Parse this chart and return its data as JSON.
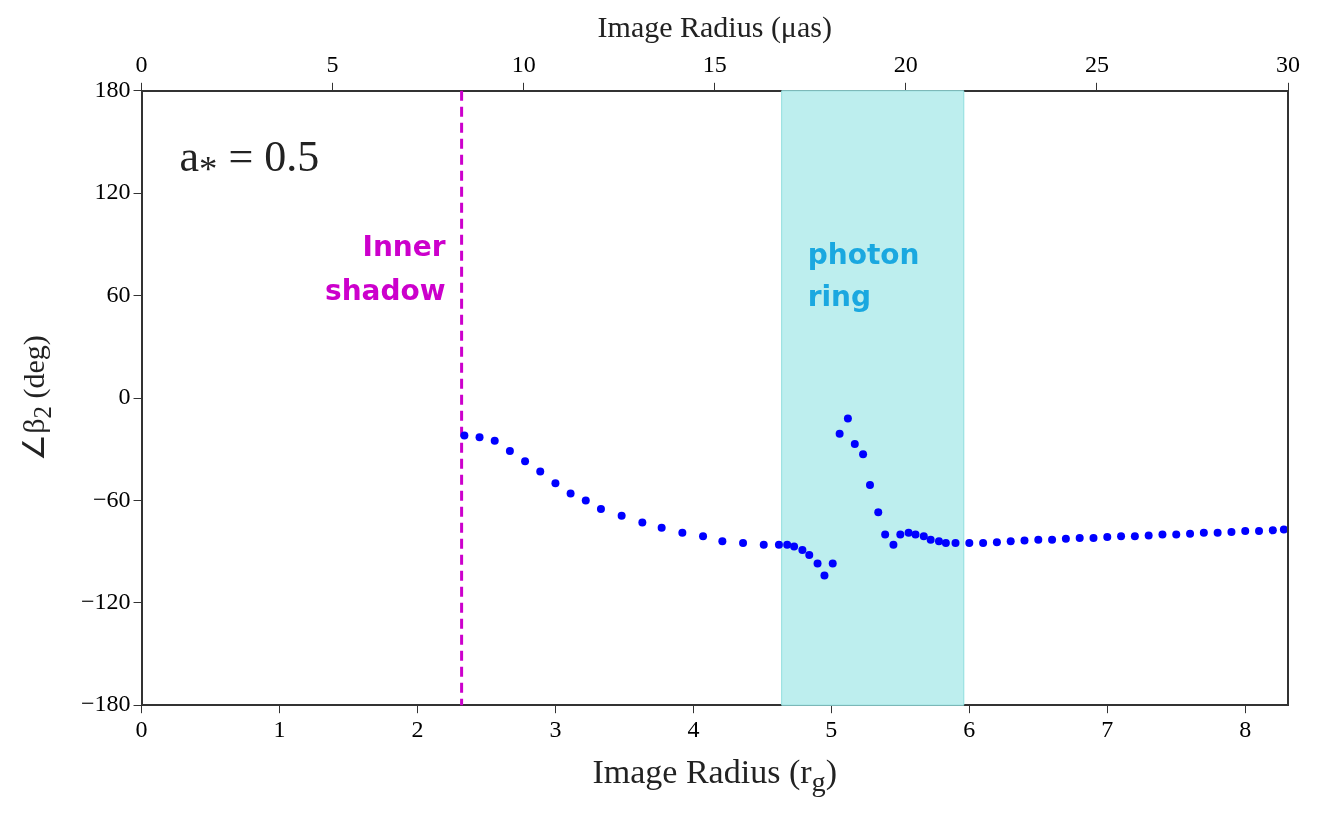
{
  "chart_data": {
    "type": "scatter",
    "xlabel": "Image Radius (r$_{g}$)",
    "x2label": "Image Radius (μas)",
    "ylabel": "∠β$_{2}$ (deg)",
    "xlim": [
      0,
      8.31
    ],
    "xticks": [
      0,
      1,
      2,
      3,
      4,
      5,
      6,
      7,
      8
    ],
    "x2lim": [
      0,
      30
    ],
    "x2ticks": [
      0,
      5,
      10,
      15,
      20,
      25,
      30
    ],
    "ylim": [
      -180,
      180
    ],
    "yticks": [
      {
        "value": -180,
        "label": "−180"
      },
      {
        "value": -120,
        "label": "−120"
      },
      {
        "value": -60,
        "label": "−60"
      },
      0,
      60,
      120,
      180
    ],
    "grid": false,
    "legend": false,
    "marker": "circle",
    "series": [
      {
        "color": "#0000ff",
        "x": [
          2.34,
          2.45,
          2.56,
          2.67,
          2.78,
          2.89,
          3.0,
          3.11,
          3.22,
          3.33,
          3.48,
          3.63,
          3.77,
          3.92,
          4.07,
          4.21,
          4.36,
          4.51,
          4.62,
          4.68,
          4.73,
          4.79,
          4.84,
          4.9,
          4.95,
          5.01,
          5.06,
          5.12,
          5.17,
          5.23,
          5.28,
          5.34,
          5.39,
          5.45,
          5.5,
          5.56,
          5.61,
          5.67,
          5.72,
          5.78,
          5.83,
          5.9,
          6.0,
          6.1,
          6.2,
          6.3,
          6.4,
          6.5,
          6.6,
          6.7,
          6.8,
          6.9,
          7.0,
          7.1,
          7.2,
          7.3,
          7.4,
          7.5,
          7.6,
          7.7,
          7.8,
          7.9,
          8.0,
          8.1,
          8.2,
          8.28
        ],
        "values": [
          -22,
          -23,
          -25,
          -31,
          -37,
          -43,
          -50,
          -56,
          -60,
          -65,
          -69,
          -73,
          -76,
          -79,
          -81,
          -84,
          -85,
          -86,
          -86,
          -86,
          -87,
          -89,
          -92,
          -97,
          -104,
          -97,
          -21,
          -12,
          -27,
          -33,
          -51,
          -67,
          -80,
          -86,
          -80,
          -79,
          -80,
          -81,
          -83,
          -84,
          -85,
          -85,
          -85,
          -85,
          -84.5,
          -84,
          -83.5,
          -83,
          -83,
          -82.5,
          -82,
          -82,
          -81.5,
          -81,
          -81,
          -80.5,
          -80,
          -80,
          -79.5,
          -79,
          -79,
          -78.5,
          -78,
          -78,
          -77.5,
          -77
        ]
      }
    ],
    "ref_lines": [
      {
        "axis": "x",
        "value": 2.32,
        "label": "Inner shadow",
        "color": "#cc00cc",
        "line_style": "dashed"
      }
    ],
    "bands": [
      {
        "axis": "x",
        "from": 4.64,
        "to": 5.96,
        "label": "photon ring",
        "color": "#bdeeee"
      }
    ],
    "annotations": [
      "a$_{*}$ = 0.5"
    ]
  }
}
